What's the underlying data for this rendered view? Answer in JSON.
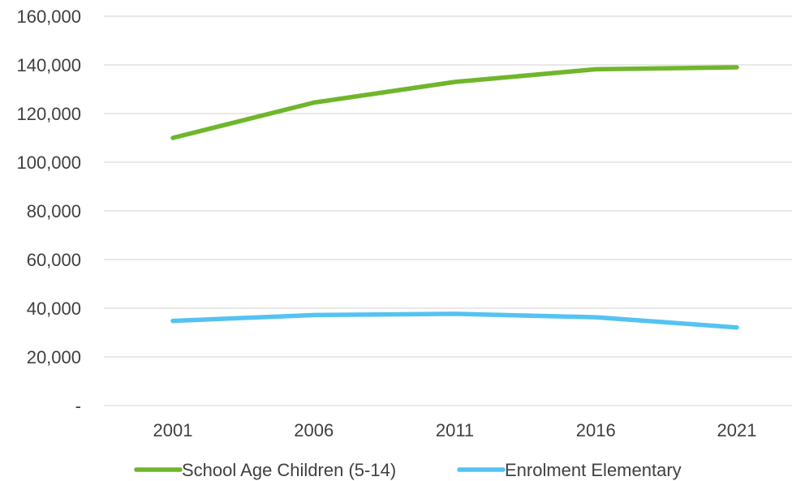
{
  "chart_data": {
    "type": "line",
    "title": "",
    "xlabel": "",
    "ylabel": "",
    "categories": [
      "2001",
      "2006",
      "2011",
      "2016",
      "2021"
    ],
    "ylim": [
      0,
      160000
    ],
    "yticks": [
      0,
      20000,
      40000,
      60000,
      80000,
      100000,
      120000,
      140000,
      160000
    ],
    "ytick_labels": [
      "-",
      "20,000",
      "40,000",
      "60,000",
      "80,000",
      "100,000",
      "120,000",
      "140,000",
      "160,000"
    ],
    "grid": true,
    "legend_position": "bottom",
    "series": [
      {
        "name": "School Age Children (5-14)",
        "color": "#70b62c",
        "values": [
          110000,
          124500,
          133000,
          138200,
          139000
        ]
      },
      {
        "name": "Enrolment Elementary",
        "color": "#55c3f1",
        "values": [
          34800,
          37200,
          37700,
          36300,
          32100
        ]
      }
    ]
  }
}
